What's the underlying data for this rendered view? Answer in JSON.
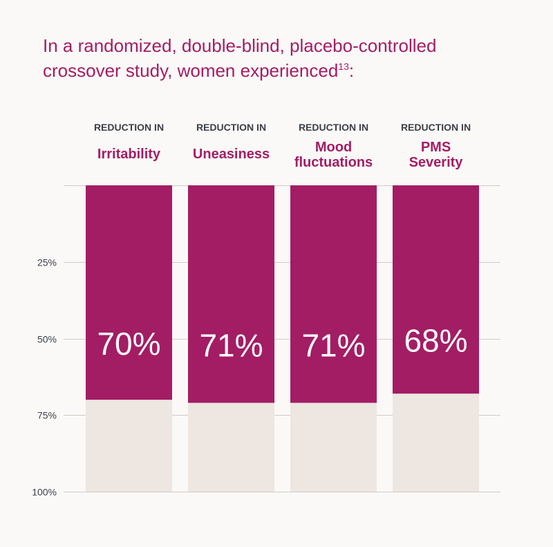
{
  "headline": {
    "line1": "In a randomized, double-blind, placebo-controlled",
    "line2": "crossover study, women experienced",
    "superscript": "13",
    "suffix": ":"
  },
  "colors": {
    "accent": "#a31d64",
    "remainder": "#ede6e1",
    "background": "#fbf9f7",
    "label_dark": "#3a3f48",
    "value_text": "#ffffff"
  },
  "chart_data": {
    "type": "bar",
    "stacked_to_100": true,
    "y_axis_inverted": true,
    "ylim": [
      0,
      100
    ],
    "yticks": [
      25,
      50,
      75,
      100
    ],
    "ytick_labels": [
      "25%",
      "50%",
      "75%",
      "100%"
    ],
    "grid": true,
    "category_prefix": "REDUCTION IN",
    "categories": [
      {
        "name_lines": [
          "Irritability"
        ],
        "value": 70,
        "value_label": "70%"
      },
      {
        "name_lines": [
          "Uneasiness"
        ],
        "value": 71,
        "value_label": "71%"
      },
      {
        "name_lines": [
          "Mood",
          "fluctuations"
        ],
        "value": 71,
        "value_label": "71%"
      },
      {
        "name_lines": [
          "PMS",
          "Severity"
        ],
        "value": 68,
        "value_label": "68%"
      }
    ]
  }
}
